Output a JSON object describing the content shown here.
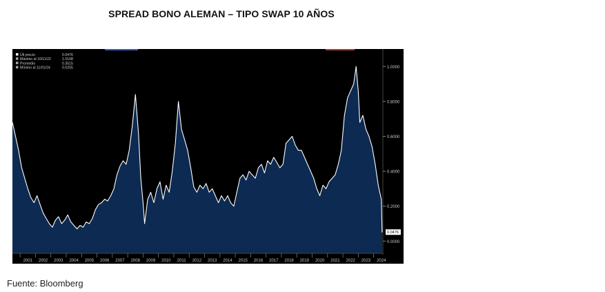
{
  "title": "SPREAD BONO ALEMAN – TIPO SWAP 10 AÑOS",
  "source": "Fuente: Bloomberg",
  "colors": {
    "background": "#000000",
    "area_fill": "#0d2a52",
    "line": "#ffffff",
    "axis_text": "#c8c8c8",
    "top_accent_blue": "#3b5bdb",
    "top_accent_red": "#c0392b"
  },
  "chart_data": {
    "type": "area",
    "title": "",
    "xlabel": "",
    "ylabel": "",
    "grid": false,
    "legend_position": "top-left",
    "legend": [
      {
        "label": "Últ precio",
        "value": "0.0476"
      },
      {
        "label": "Máximo al 10/11/22",
        "value": "1.0108"
      },
      {
        "label": "Promedio",
        "value": "0.3515"
      },
      {
        "label": "Mínimo al 11/01/24",
        "value": "0.0255"
      }
    ],
    "last_value_label": "0.0476",
    "y_ticks": [
      "1.0000",
      "0.8000",
      "0.6000",
      "0.4000",
      "0.2000",
      "0.0000"
    ],
    "y_tick_values": [
      1.0,
      0.8,
      0.6,
      0.4,
      0.2,
      0.0
    ],
    "ylim": [
      -0.07,
      1.1
    ],
    "x_ticks": [
      "2001",
      "2002",
      "2003",
      "2004",
      "2005",
      "2006",
      "2007",
      "2008",
      "2009",
      "2010",
      "2011",
      "2012",
      "2013",
      "2014",
      "2015",
      "2016",
      "2017",
      "2018",
      "2019",
      "2020",
      "2021",
      "2022",
      "2023",
      "2024"
    ],
    "xlim": [
      2000.5,
      2024.6
    ],
    "series": [
      {
        "x": [
          2000.5,
          2000.7,
          2000.9,
          2001.1,
          2001.3,
          2001.5,
          2001.7,
          2001.9,
          2002.1,
          2002.3,
          2002.5,
          2002.7,
          2002.9,
          2003.1,
          2003.3,
          2003.5,
          2003.7,
          2003.9,
          2004.1,
          2004.3,
          2004.5,
          2004.7,
          2004.9,
          2005.1,
          2005.3,
          2005.5,
          2005.7,
          2005.9,
          2006.1,
          2006.3,
          2006.5,
          2006.7,
          2006.9,
          2007.1,
          2007.3,
          2007.5,
          2007.7,
          2007.9,
          2008.1,
          2008.3,
          2008.5,
          2008.7,
          2008.85,
          2009.0,
          2009.1,
          2009.3,
          2009.5,
          2009.7,
          2009.9,
          2010.1,
          2010.3,
          2010.5,
          2010.7,
          2010.9,
          2011.1,
          2011.3,
          2011.5,
          2011.7,
          2011.9,
          2012.1,
          2012.3,
          2012.5,
          2012.7,
          2012.9,
          2013.1,
          2013.3,
          2013.5,
          2013.7,
          2013.9,
          2014.1,
          2014.3,
          2014.5,
          2014.7,
          2014.9,
          2015.1,
          2015.3,
          2015.5,
          2015.7,
          2015.9,
          2016.1,
          2016.3,
          2016.5,
          2016.7,
          2016.9,
          2017.1,
          2017.3,
          2017.5,
          2017.7,
          2017.9,
          2018.1,
          2018.3,
          2018.5,
          2018.7,
          2018.9,
          2019.1,
          2019.3,
          2019.5,
          2019.7,
          2019.9,
          2020.1,
          2020.3,
          2020.5,
          2020.7,
          2020.9,
          2021.1,
          2021.3,
          2021.5,
          2021.7,
          2021.9,
          2022.1,
          2022.3,
          2022.5,
          2022.7,
          2022.86,
          2023.0,
          2023.1,
          2023.3,
          2023.5,
          2023.7,
          2023.9,
          2024.1,
          2024.3,
          2024.4,
          2024.5,
          2024.55
        ],
        "y": [
          0.68,
          0.6,
          0.52,
          0.42,
          0.36,
          0.3,
          0.25,
          0.22,
          0.26,
          0.21,
          0.16,
          0.13,
          0.1,
          0.08,
          0.12,
          0.14,
          0.1,
          0.12,
          0.15,
          0.11,
          0.09,
          0.07,
          0.09,
          0.08,
          0.11,
          0.1,
          0.13,
          0.18,
          0.21,
          0.22,
          0.24,
          0.23,
          0.26,
          0.3,
          0.38,
          0.43,
          0.46,
          0.44,
          0.52,
          0.66,
          0.84,
          0.62,
          0.36,
          0.22,
          0.1,
          0.24,
          0.28,
          0.22,
          0.3,
          0.34,
          0.24,
          0.32,
          0.28,
          0.4,
          0.56,
          0.8,
          0.64,
          0.58,
          0.52,
          0.42,
          0.31,
          0.28,
          0.32,
          0.3,
          0.33,
          0.28,
          0.3,
          0.26,
          0.22,
          0.26,
          0.23,
          0.26,
          0.22,
          0.2,
          0.28,
          0.36,
          0.38,
          0.35,
          0.4,
          0.38,
          0.36,
          0.42,
          0.44,
          0.39,
          0.46,
          0.44,
          0.48,
          0.45,
          0.42,
          0.44,
          0.56,
          0.58,
          0.6,
          0.55,
          0.52,
          0.52,
          0.48,
          0.44,
          0.4,
          0.36,
          0.3,
          0.26,
          0.32,
          0.3,
          0.34,
          0.36,
          0.38,
          0.44,
          0.52,
          0.72,
          0.82,
          0.86,
          0.9,
          1.0,
          0.86,
          0.68,
          0.72,
          0.64,
          0.6,
          0.54,
          0.44,
          0.32,
          0.28,
          0.24,
          0.05
        ]
      }
    ]
  }
}
